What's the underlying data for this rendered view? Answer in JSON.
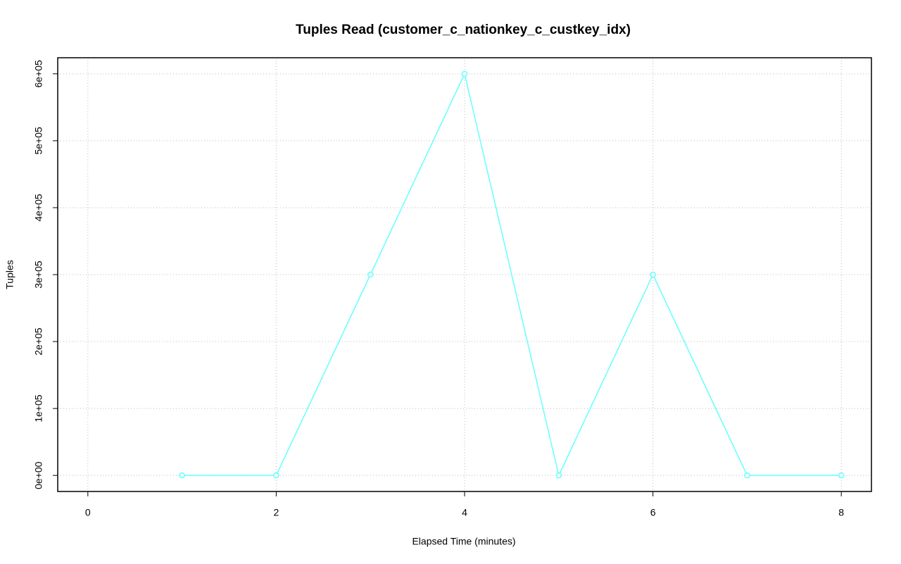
{
  "chart_data": {
    "type": "line",
    "title": "Tuples Read (customer_c_nationkey_c_custkey_idx)",
    "x_label": "Elapsed Time (minutes)",
    "y_label": "Tuples",
    "x": [
      1,
      2,
      3,
      4,
      5,
      6,
      7,
      8
    ],
    "series": [
      {
        "name": "Tuples",
        "color": "#66ffff",
        "values": [
          0,
          0,
          300000,
          600000,
          0,
          300000,
          0,
          0
        ]
      }
    ],
    "xlim": [
      -0.32,
      8.32
    ],
    "xticks": [
      0,
      2,
      4,
      6,
      8
    ],
    "ylim": [
      -24000,
      624000
    ],
    "yticks": [
      {
        "value": 0,
        "label": "0e+00"
      },
      {
        "value": 100000,
        "label": "1e+05"
      },
      {
        "value": 200000,
        "label": "2e+05"
      },
      {
        "value": 300000,
        "label": "3e+05"
      },
      {
        "value": 400000,
        "label": "4e+05"
      },
      {
        "value": 500000,
        "label": "5e+05"
      },
      {
        "value": 600000,
        "label": "6e+05"
      }
    ],
    "grid": true
  }
}
